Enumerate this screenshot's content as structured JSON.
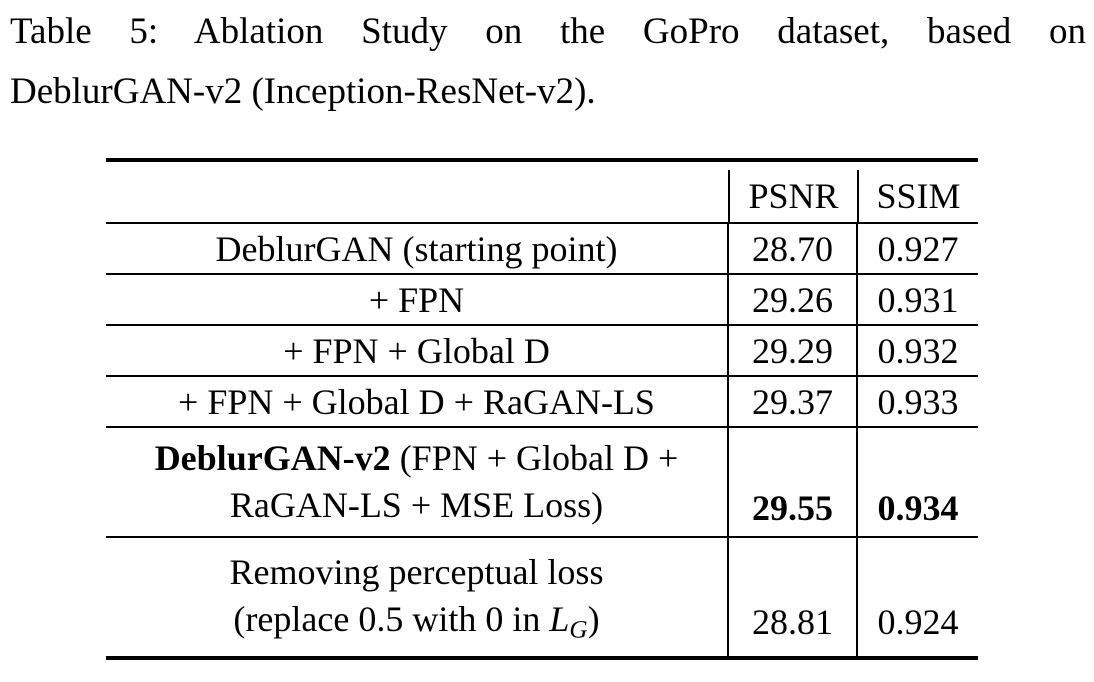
{
  "caption": {
    "line1": "Table 5: Ablation Study on the GoPro dataset, based on",
    "line2": "DeblurGAN-v2 (Inception-ResNet-v2)."
  },
  "table": {
    "header": {
      "psnr": "PSNR",
      "ssim": "SSIM"
    },
    "rows": [
      {
        "label": "DeblurGAN (starting point)",
        "psnr": "28.70",
        "ssim": "0.927"
      },
      {
        "label": "+ FPN",
        "psnr": "29.26",
        "ssim": "0.931"
      },
      {
        "label": "+ FPN + Global D",
        "psnr": "29.29",
        "ssim": "0.932"
      },
      {
        "label": "+ FPN + Global D + RaGAN-LS",
        "psnr": "29.37",
        "ssim": "0.933"
      },
      {
        "label_bold": "DeblurGAN-v2",
        "label_rest_line1": " (FPN + Global D +",
        "label_line2": "RaGAN-LS + MSE Loss)",
        "psnr": "29.55",
        "ssim": "0.934"
      },
      {
        "label_line1": "Removing perceptual loss",
        "label_line2_pre": "(replace 0.5 with 0 in ",
        "math_symbol": "L",
        "math_sub": "G",
        "label_line2_post": ")",
        "psnr": "28.81",
        "ssim": "0.924"
      }
    ]
  },
  "colors": {
    "text": "#000000",
    "background": "#ffffff",
    "rule": "#000000"
  }
}
